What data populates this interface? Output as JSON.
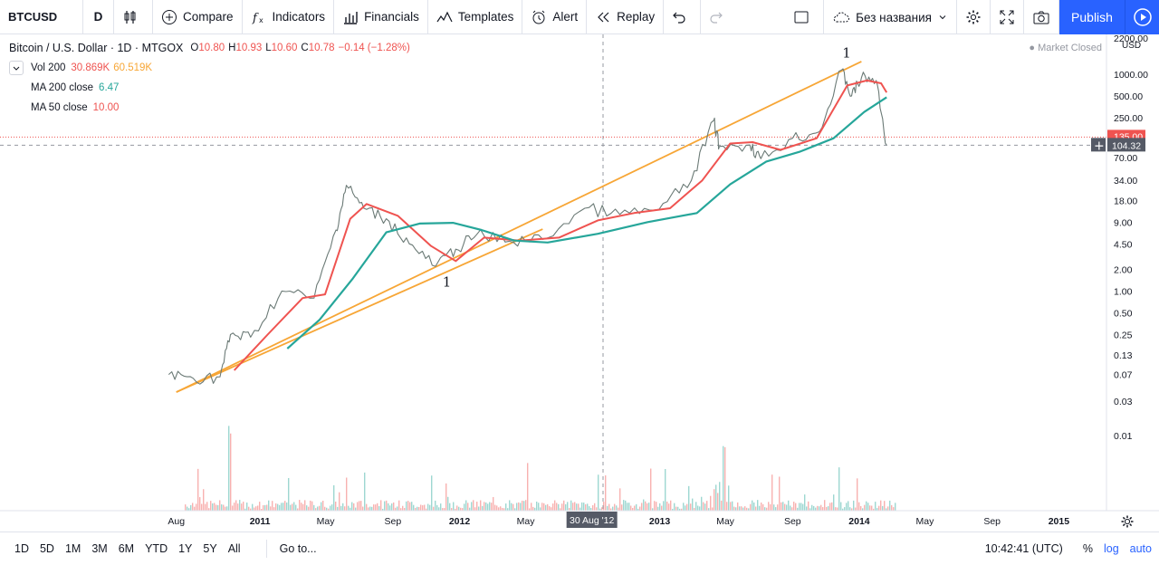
{
  "toolbar": {
    "symbol": "BTCUSD",
    "interval": "D",
    "compare": "Compare",
    "indicators": "Indicators",
    "financials": "Financials",
    "templates": "Templates",
    "alert": "Alert",
    "replay": "Replay",
    "layout_name": "Без названия",
    "publish": "Publish"
  },
  "legend": {
    "title": "Bitcoin / U.S. Dollar · 1D · MTGOX",
    "o_label": "O",
    "o": "10.80",
    "h_label": "H",
    "h": "10.93",
    "l_label": "L",
    "l": "10.60",
    "c_label": "C",
    "c": "10.78",
    "change": "−0.14 (−1.28%)",
    "vol_label": "Vol 200",
    "vol1": "30.869K",
    "vol2": "60.519K",
    "ma200_label": "MA 200 close",
    "ma200": "6.47",
    "ma50_label": "MA 50 close",
    "ma50": "10.00"
  },
  "market_status": "Market Closed",
  "colors": {
    "ma200": "#26a69a",
    "ma50": "#ef5350",
    "trendline": "#f7a636",
    "accent": "#2962ff"
  },
  "chart_data": {
    "type": "line",
    "price_scale": "log",
    "currency": "USD",
    "y_ticks": [
      "2200.00",
      "1000.00",
      "500.00",
      "250.00",
      "135.00",
      "104.32",
      "70.00",
      "34.00",
      "18.00",
      "9.00",
      "4.50",
      "2.00",
      "1.00",
      "0.50",
      "0.25",
      "0.13",
      "0.07",
      "0.03",
      "0.01"
    ],
    "last_price_label": "104.32",
    "marker_price_label": "135.00",
    "x_ticks": [
      "Aug",
      "2011",
      "May",
      "Sep",
      "2012",
      "May",
      "30 Aug '12",
      "2013",
      "May",
      "Sep",
      "2014",
      "May",
      "Sep",
      "2015"
    ],
    "annotations": [
      "1",
      "1"
    ],
    "series": [
      {
        "name": "Price",
        "points": [
          [
            "2010-07-18",
            0.07
          ],
          [
            "2010-09-01",
            0.062
          ],
          [
            "2010-10-20",
            0.065
          ],
          [
            "2010-11-08",
            0.25
          ],
          [
            "2010-12-15",
            0.23
          ],
          [
            "2011-02-10",
            1.0
          ],
          [
            "2011-04-10",
            0.8
          ],
          [
            "2011-05-20",
            7.0
          ],
          [
            "2011-06-08",
            29.0
          ],
          [
            "2011-07-10",
            14.0
          ],
          [
            "2011-08-20",
            10.0
          ],
          [
            "2011-10-01",
            4.5
          ],
          [
            "2011-11-18",
            2.2
          ],
          [
            "2011-12-25",
            3.8
          ],
          [
            "2012-02-01",
            6.0
          ],
          [
            "2012-04-01",
            4.9
          ],
          [
            "2012-06-01",
            5.2
          ],
          [
            "2012-08-17",
            14.0
          ],
          [
            "2012-10-20",
            11.5
          ],
          [
            "2012-12-31",
            13.5
          ],
          [
            "2013-02-28",
            34.0
          ],
          [
            "2013-04-10",
            230.0
          ],
          [
            "2013-04-20",
            100.0
          ],
          [
            "2013-06-15",
            105.0
          ],
          [
            "2013-07-05",
            68.0
          ],
          [
            "2013-09-01",
            130.0
          ],
          [
            "2013-10-20",
            160.0
          ],
          [
            "2013-11-30",
            1150.0
          ],
          [
            "2013-12-18",
            500.0
          ],
          [
            "2014-01-05",
            900.0
          ],
          [
            "2014-02-01",
            820.0
          ],
          [
            "2014-02-20",
            104.32
          ]
        ]
      },
      {
        "name": "MA 50 close",
        "points": [
          [
            "2010-11-15",
            0.08
          ],
          [
            "2011-01-15",
            0.25
          ],
          [
            "2011-03-20",
            0.8
          ],
          [
            "2011-04-30",
            0.9
          ],
          [
            "2011-06-15",
            10.0
          ],
          [
            "2011-07-15",
            16.0
          ],
          [
            "2011-09-10",
            11.0
          ],
          [
            "2011-11-10",
            4.2
          ],
          [
            "2011-12-25",
            2.6
          ],
          [
            "2012-02-15",
            5.5
          ],
          [
            "2012-04-20",
            5.0
          ],
          [
            "2012-07-01",
            5.5
          ],
          [
            "2012-09-10",
            9.5
          ],
          [
            "2012-11-15",
            12.0
          ],
          [
            "2013-01-20",
            14.0
          ],
          [
            "2013-03-20",
            34.0
          ],
          [
            "2013-05-10",
            110.0
          ],
          [
            "2013-06-20",
            115.0
          ],
          [
            "2013-08-10",
            90.0
          ],
          [
            "2013-10-15",
            130.0
          ],
          [
            "2013-12-10",
            700.0
          ],
          [
            "2014-01-15",
            820.0
          ],
          [
            "2014-02-10",
            750.0
          ],
          [
            "2014-02-20",
            560.0
          ]
        ]
      },
      {
        "name": "MA 200 close",
        "points": [
          [
            "2011-02-20",
            0.16
          ],
          [
            "2011-04-20",
            0.4
          ],
          [
            "2011-06-20",
            1.5
          ],
          [
            "2011-08-20",
            6.5
          ],
          [
            "2011-10-20",
            8.6
          ],
          [
            "2011-12-20",
            8.8
          ],
          [
            "2012-02-10",
            7.0
          ],
          [
            "2012-04-10",
            5.0
          ],
          [
            "2012-06-10",
            4.7
          ],
          [
            "2012-09-10",
            6.2
          ],
          [
            "2012-12-10",
            9.0
          ],
          [
            "2013-03-10",
            12.0
          ],
          [
            "2013-05-10",
            30.0
          ],
          [
            "2013-07-15",
            62.0
          ],
          [
            "2013-09-15",
            85.0
          ],
          [
            "2013-11-15",
            130.0
          ],
          [
            "2014-01-10",
            300.0
          ],
          [
            "2014-02-20",
            480.0
          ]
        ]
      }
    ],
    "trendlines": [
      [
        [
          "2010-08-01",
          0.04
        ],
        [
          "2014-01-05",
          1500.0
        ]
      ]
    ]
  },
  "bottom": {
    "ranges": [
      "1D",
      "5D",
      "1M",
      "3M",
      "6M",
      "YTD",
      "1Y",
      "5Y",
      "All"
    ],
    "goto": "Go to...",
    "time": "10:42:41 (UTC)",
    "percent": "%",
    "log": "log",
    "auto": "auto"
  }
}
